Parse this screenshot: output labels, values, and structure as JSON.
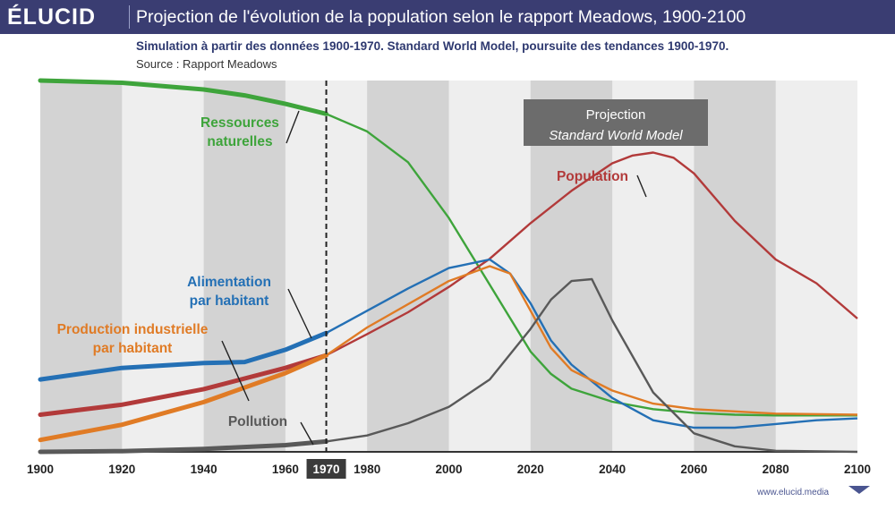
{
  "header": {
    "brand": "ÉLUCID",
    "title": "Projection de l'évolution de la population selon le rapport Meadows, 1900-2100",
    "subtitle": "Simulation à partir des données 1900-1970. Standard World Model, poursuite des tendances 1900-1970.",
    "source": "Source : Rapport Meadows"
  },
  "footer": {
    "website": "www.elucid.media"
  },
  "chart_data": {
    "type": "line",
    "title": "Projection de l'évolution de la population selon le rapport Meadows, 1900-2100",
    "xlabel": "",
    "ylabel": "",
    "xlim": [
      1900,
      2100
    ],
    "ylim": [
      0,
      100
    ],
    "x_ticks": [
      "1900",
      "1920",
      "1940",
      "1960",
      "1970",
      "1980",
      "2000",
      "2020",
      "2040",
      "2060",
      "2080",
      "2100"
    ],
    "highlight_year": "1970",
    "projection_box": {
      "line1": "Projection",
      "line2": "Standard World Model"
    },
    "series": [
      {
        "name": "Ressources naturelles",
        "label_lines": [
          "Ressources",
          "naturelles"
        ],
        "color": "#3ea43b",
        "x": [
          1900,
          1920,
          1940,
          1950,
          1960,
          1970,
          1980,
          1990,
          2000,
          2005,
          2010,
          2015,
          2020,
          2025,
          2030,
          2040,
          2050,
          2060,
          2070,
          2080,
          2090,
          2100
        ],
        "y": [
          100,
          99.4,
          97.6,
          96,
          93.7,
          91,
          86.3,
          78,
          63,
          54,
          45,
          36,
          27,
          21,
          17,
          13.5,
          11.5,
          10.5,
          10,
          9.8,
          9.8,
          9.8
        ]
      },
      {
        "name": "Population",
        "label_lines": [
          "Population"
        ],
        "color": "#b23a3a",
        "x": [
          1900,
          1920,
          1940,
          1960,
          1970,
          1980,
          1990,
          2000,
          2010,
          2020,
          2030,
          2040,
          2045,
          2050,
          2055,
          2060,
          2070,
          2080,
          2090,
          2100
        ],
        "y": [
          10,
          12.7,
          16.9,
          22.6,
          26,
          31.7,
          37.6,
          44.4,
          52,
          61.6,
          70.3,
          77.7,
          79.8,
          80.6,
          79.2,
          75,
          62.2,
          51.8,
          45.4,
          35.9
        ]
      },
      {
        "name": "Alimentation par habitant",
        "label_lines": [
          "Alimentation",
          "par habitant"
        ],
        "color": "#2470b5",
        "x": [
          1900,
          1920,
          1940,
          1950,
          1960,
          1970,
          1980,
          1990,
          2000,
          2010,
          2015,
          2020,
          2025,
          2030,
          2040,
          2050,
          2060,
          2070,
          2080,
          2090,
          2100
        ],
        "y": [
          19.5,
          22.6,
          23.9,
          24.2,
          27.5,
          32,
          38,
          44,
          49.5,
          51.8,
          48,
          40,
          30,
          23.5,
          14.5,
          8.5,
          6.5,
          6.5,
          7.5,
          8.5,
          9
        ]
      },
      {
        "name": "Production industrielle par habitant",
        "label_lines": [
          "Production industrielle",
          "par habitant"
        ],
        "color": "#e07b25",
        "x": [
          1900,
          1920,
          1940,
          1960,
          1970,
          1980,
          2000,
          2010,
          2015,
          2020,
          2025,
          2030,
          2040,
          2050,
          2060,
          2080,
          2100
        ],
        "y": [
          3.2,
          7.3,
          13.4,
          21.2,
          26,
          33.5,
          46,
          50,
          48,
          38,
          28,
          22,
          16.5,
          13,
          11.5,
          10.3,
          10
        ]
      },
      {
        "name": "Pollution",
        "label_lines": [
          "Pollution"
        ],
        "color": "#595959",
        "x": [
          1900,
          1920,
          1940,
          1960,
          1970,
          1980,
          1990,
          2000,
          2010,
          2020,
          2025,
          2030,
          2035,
          2040,
          2050,
          2060,
          2070,
          2080,
          2100
        ],
        "y": [
          0,
          0.2,
          0.8,
          1.8,
          2.8,
          4.4,
          7.7,
          12.1,
          19.5,
          33.1,
          41,
          46,
          46.5,
          35.4,
          16,
          5,
          1.5,
          0.3,
          0
        ]
      }
    ]
  }
}
